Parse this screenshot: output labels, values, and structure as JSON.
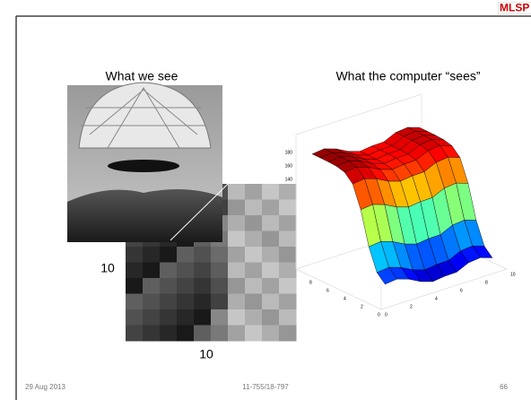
{
  "header": {
    "logo": "MLSP"
  },
  "left": {
    "caption": "What we see",
    "dim_rows": "10",
    "dim_cols": "10"
  },
  "right": {
    "caption": "What the computer “sees”",
    "z_ticks": [
      "180",
      "160",
      "140"
    ],
    "y_ticks": [
      "8",
      "6",
      "4",
      "2",
      "0"
    ],
    "x_ticks": [
      "0",
      "2",
      "4",
      "6",
      "8",
      "10"
    ]
  },
  "footer": {
    "date": "29 Aug 2013",
    "course": "11-755/18-797",
    "page": "66"
  }
}
